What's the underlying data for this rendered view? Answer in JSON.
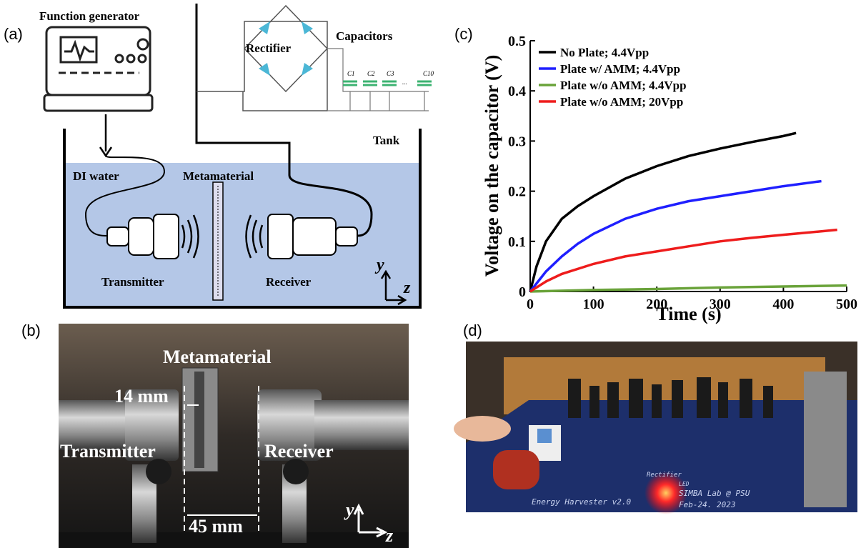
{
  "panels": {
    "a": "(a)",
    "b": "(b)",
    "c": "(c)",
    "d": "(d)"
  },
  "diagram": {
    "function_generator": "Function generator",
    "rectifier": "Rectifier",
    "capacitors": "Capacitors",
    "capacitor_labels": [
      "C1",
      "C2",
      "C3",
      "...",
      "C10"
    ],
    "tank": "Tank",
    "di_water": "DI water",
    "metamaterial": "Metamaterial",
    "transmitter": "Transmitter",
    "receiver": "Receiver",
    "axis_y": "y",
    "axis_z": "z"
  },
  "photo_b": {
    "metamaterial": "Metamaterial",
    "gap": "14 mm",
    "transmitter": "Transmitter",
    "receiver": "Receiver",
    "distance": "45 mm",
    "axis_y": "y",
    "axis_z": "z"
  },
  "photo_d": {
    "rectifier": "Rectifier",
    "board": "Energy Harvester v2.0",
    "lab": "SIMBA Lab @ PSU",
    "date": "Feb-24. 2023",
    "led": "LED"
  },
  "chart_data": {
    "type": "line",
    "xlabel": "Time (s)",
    "ylabel": "Voltage on the capacitor (V)",
    "xlim": [
      0,
      500
    ],
    "ylim": [
      0,
      0.5
    ],
    "xticks": [
      0,
      100,
      200,
      300,
      400,
      500
    ],
    "yticks": [
      0,
      0.1,
      0.2,
      0.3,
      0.4,
      0.5
    ],
    "legend": "upper left",
    "series": [
      {
        "name": "No Plate; 4.4Vpp",
        "color": "#000000",
        "x": [
          0,
          10,
          25,
          50,
          75,
          100,
          150,
          200,
          250,
          300,
          350,
          400,
          420
        ],
        "values": [
          0,
          0.05,
          0.1,
          0.145,
          0.17,
          0.19,
          0.225,
          0.25,
          0.27,
          0.285,
          0.298,
          0.31,
          0.316
        ]
      },
      {
        "name": "Plate w/ AMM; 4.4Vpp",
        "color": "#1f1fff",
        "x": [
          0,
          25,
          50,
          75,
          100,
          150,
          200,
          250,
          300,
          350,
          400,
          460
        ],
        "values": [
          0,
          0.04,
          0.07,
          0.095,
          0.115,
          0.145,
          0.165,
          0.18,
          0.19,
          0.2,
          0.21,
          0.22
        ]
      },
      {
        "name": "Plate w/o AMM; 4.4Vpp",
        "color": "#6aa33a",
        "x": [
          0,
          100,
          200,
          300,
          400,
          500
        ],
        "values": [
          0,
          0.003,
          0.005,
          0.008,
          0.01,
          0.012
        ]
      },
      {
        "name": "Plate w/o AMM; 20Vpp",
        "color": "#ee1c1c",
        "x": [
          0,
          25,
          50,
          100,
          150,
          200,
          250,
          300,
          350,
          400,
          485
        ],
        "values": [
          0,
          0.02,
          0.035,
          0.055,
          0.07,
          0.08,
          0.09,
          0.1,
          0.107,
          0.113,
          0.123
        ]
      }
    ]
  }
}
